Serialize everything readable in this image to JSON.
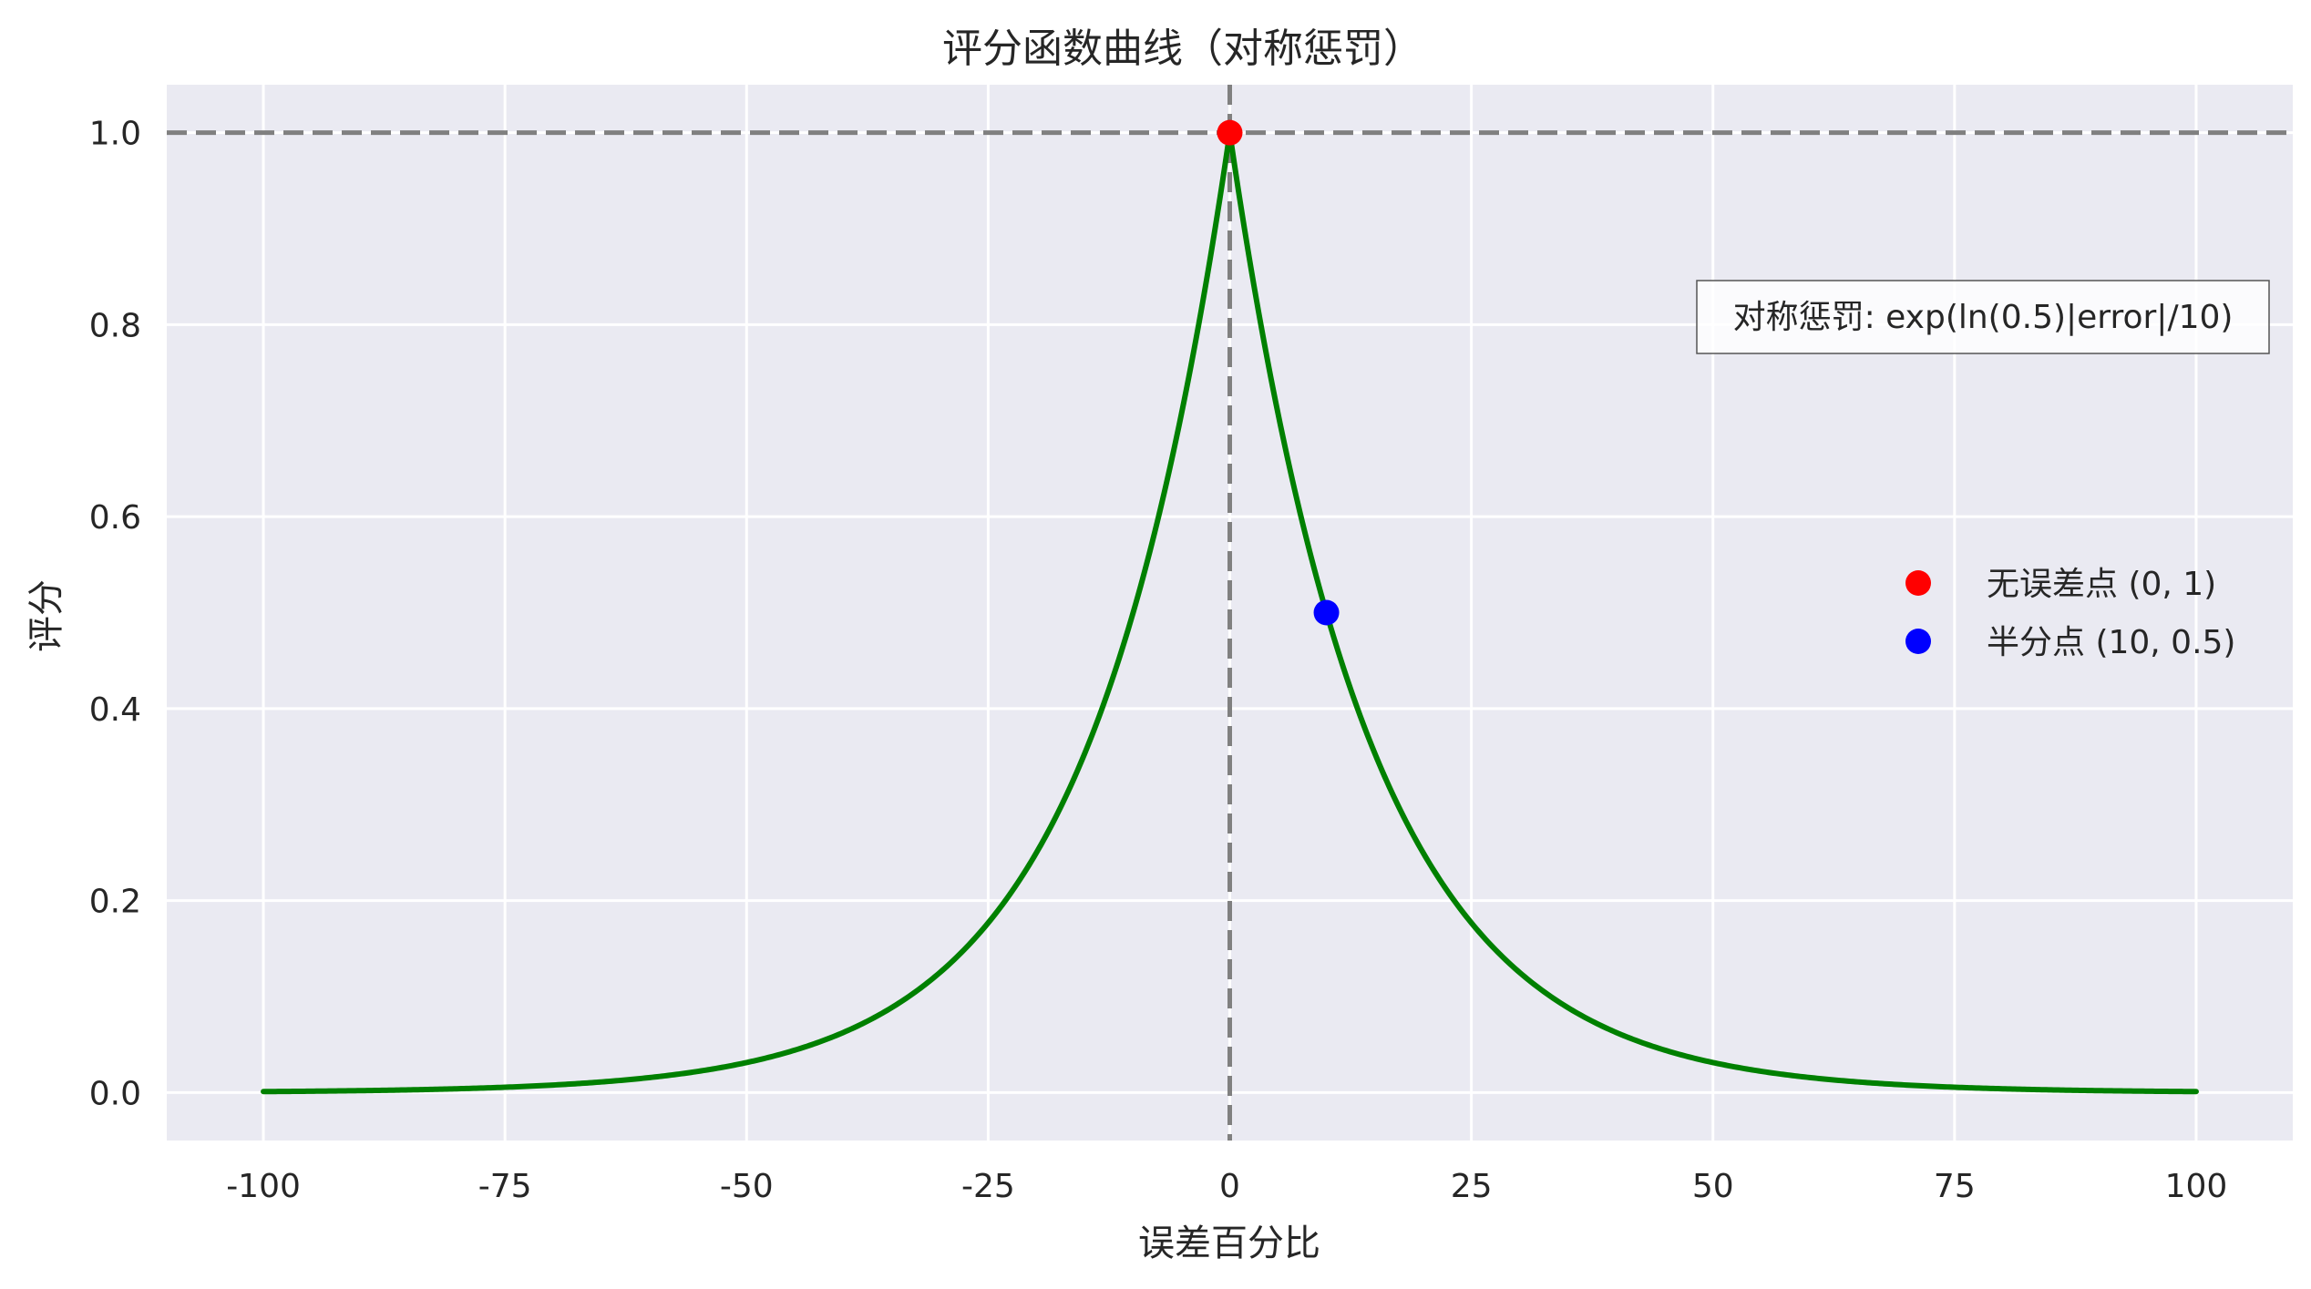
{
  "chart_data": {
    "type": "line",
    "title": "评分函数曲线（对称惩罚）",
    "xlabel": "误差百分比",
    "ylabel": "评分",
    "xlim": [
      -110,
      110
    ],
    "ylim": [
      -0.05,
      1.05
    ],
    "x_ticks": [
      -100,
      -75,
      -50,
      -25,
      0,
      25,
      50,
      75,
      100
    ],
    "x_tick_labels": [
      "-100",
      "-75",
      "-50",
      "-25",
      "0",
      "25",
      "50",
      "75",
      "100"
    ],
    "y_ticks": [
      0.0,
      0.2,
      0.4,
      0.6,
      0.8,
      1.0
    ],
    "y_tick_labels": [
      "0.0",
      "0.2",
      "0.4",
      "0.6",
      "0.8",
      "1.0"
    ],
    "grid": true,
    "background": "#eaeaf2",
    "curve": {
      "x_range": [
        -100,
        100
      ],
      "function": "exp(ln(0.5)|x|/10)",
      "x": [
        -100,
        -75,
        -50,
        -40,
        -30,
        -25,
        -20,
        -15,
        -10,
        -5,
        0,
        5,
        10,
        15,
        20,
        25,
        30,
        40,
        50,
        75,
        100
      ],
      "y": [
        0.001,
        0.006,
        0.031,
        0.063,
        0.125,
        0.177,
        0.25,
        0.354,
        0.5,
        0.707,
        1.0,
        0.707,
        0.5,
        0.354,
        0.25,
        0.177,
        0.125,
        0.063,
        0.031,
        0.006,
        0.001
      ],
      "color": "#008000"
    },
    "reference_lines": [
      {
        "orientation": "horizontal",
        "value": 1.0,
        "color": "#808080",
        "style": "dashed"
      },
      {
        "orientation": "vertical",
        "value": 0,
        "color": "#808080",
        "style": "dashed"
      }
    ],
    "points": [
      {
        "name": "无误差点 (0, 1)",
        "x": 0,
        "y": 1.0,
        "color": "#ff0000"
      },
      {
        "name": "半分点 (10, 0.5)",
        "x": 10,
        "y": 0.5,
        "color": "#0000ff"
      }
    ],
    "legend": {
      "placement": "center-right",
      "entries": [
        "无误差点 (0, 1)",
        "半分点 (10, 0.5)"
      ]
    },
    "annotation": {
      "text": "对称惩罚: exp(ln(0.5)|error|/10)",
      "placement": "upper-right"
    }
  }
}
